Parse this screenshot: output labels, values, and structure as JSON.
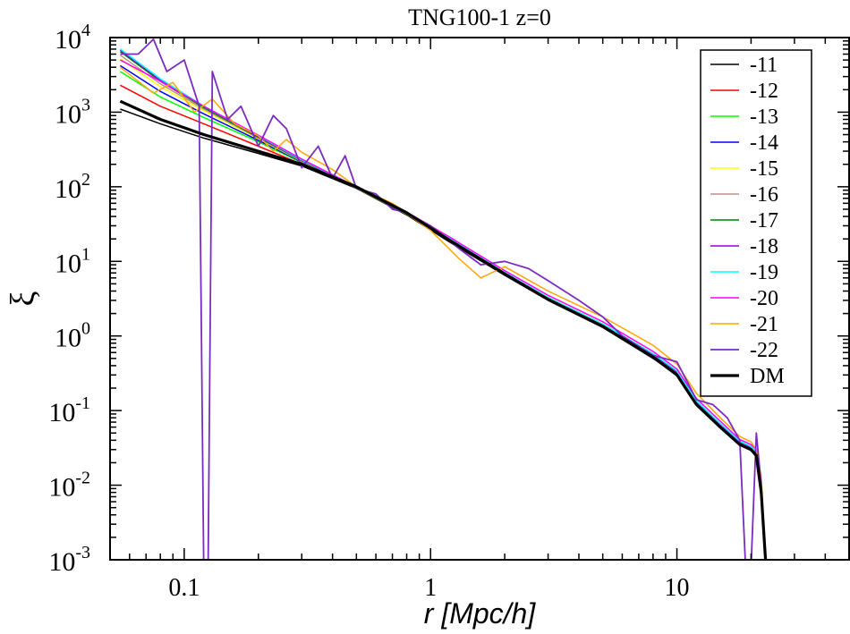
{
  "chart_data": {
    "type": "line",
    "title": "TNG100-1 z=0",
    "xlabel": "r [Mpc/h]",
    "ylabel": "ξ",
    "xscale": "log",
    "yscale": "log",
    "xlim": [
      0.05,
      50
    ],
    "ylim": [
      0.001,
      10000
    ],
    "x_ticks": [
      {
        "value": 0.1,
        "label": "0.1"
      },
      {
        "value": 1,
        "label": "1"
      },
      {
        "value": 10,
        "label": "10"
      }
    ],
    "y_ticks": [
      {
        "value": 0.001,
        "base": "10",
        "exp": "-3"
      },
      {
        "value": 0.01,
        "base": "10",
        "exp": "-2"
      },
      {
        "value": 0.1,
        "base": "10",
        "exp": "-1"
      },
      {
        "value": 1,
        "base": "10",
        "exp": "0"
      },
      {
        "value": 10,
        "base": "10",
        "exp": "1"
      },
      {
        "value": 100,
        "base": "10",
        "exp": "2"
      },
      {
        "value": 1000,
        "base": "10",
        "exp": "3"
      },
      {
        "value": 10000,
        "base": "10",
        "exp": "4"
      }
    ],
    "grid": false,
    "legend_position": "top-right",
    "series": [
      {
        "name": "-11",
        "color": "#000000",
        "width": 1.5,
        "x": [
          0.055,
          0.08,
          0.12,
          0.2,
          0.3,
          0.5,
          0.8,
          1.2,
          2,
          3,
          5,
          8,
          10,
          12,
          15,
          18,
          20,
          21,
          22,
          23
        ],
        "y": [
          1100,
          700,
          450,
          280,
          190,
          95,
          42,
          18,
          6.5,
          3,
          1.3,
          0.5,
          0.3,
          0.12,
          0.06,
          0.035,
          0.03,
          0.025,
          0.008,
          0.0008
        ]
      },
      {
        "name": "-12",
        "color": "#ff0000",
        "width": 1.5,
        "x": [
          0.055,
          0.08,
          0.12,
          0.2,
          0.3,
          0.5,
          0.8,
          1.2,
          2,
          3,
          5,
          8,
          10,
          12,
          15,
          18,
          20,
          21,
          22,
          23
        ],
        "y": [
          2300,
          1200,
          700,
          350,
          200,
          100,
          45,
          20,
          7,
          3.2,
          1.4,
          0.55,
          0.32,
          0.13,
          0.065,
          0.037,
          0.031,
          0.026,
          0.009,
          0.0008
        ]
      },
      {
        "name": "-13",
        "color": "#00ff00",
        "width": 1.5,
        "x": [
          0.055,
          0.08,
          0.12,
          0.2,
          0.3,
          0.5,
          0.8,
          1.2,
          2,
          3,
          5,
          8,
          10,
          12,
          15,
          18,
          20,
          21,
          22,
          23
        ],
        "y": [
          3500,
          1600,
          850,
          400,
          210,
          98,
          44,
          19.5,
          6.8,
          3.1,
          1.35,
          0.52,
          0.31,
          0.125,
          0.062,
          0.036,
          0.03,
          0.025,
          0.009,
          0.0008
        ]
      },
      {
        "name": "-14",
        "color": "#0000ff",
        "width": 1.5,
        "x": [
          0.055,
          0.08,
          0.12,
          0.2,
          0.3,
          0.5,
          0.8,
          1.2,
          2,
          3,
          5,
          8,
          10,
          12,
          15,
          18,
          20,
          21,
          22,
          23
        ],
        "y": [
          4200,
          1900,
          950,
          420,
          215,
          97,
          43,
          19,
          6.6,
          3.05,
          1.32,
          0.51,
          0.3,
          0.122,
          0.06,
          0.035,
          0.029,
          0.024,
          0.008,
          0.0008
        ]
      },
      {
        "name": "-15",
        "color": "#ffff00",
        "width": 1.5,
        "x": [
          0.055,
          0.08,
          0.12,
          0.2,
          0.3,
          0.5,
          0.8,
          1.2,
          2,
          3,
          5,
          8,
          10,
          12,
          15,
          18,
          20,
          21,
          22,
          23
        ],
        "y": [
          5200,
          2200,
          1050,
          440,
          220,
          96,
          43,
          19,
          6.7,
          3.1,
          1.35,
          0.53,
          0.31,
          0.125,
          0.062,
          0.036,
          0.03,
          0.025,
          0.009,
          0.0008
        ]
      },
      {
        "name": "-16",
        "color": "#bc8f8f",
        "width": 1.5,
        "x": [
          0.055,
          0.08,
          0.12,
          0.2,
          0.3,
          0.5,
          0.8,
          1.2,
          2,
          3,
          5,
          8,
          10,
          12,
          15,
          18,
          20,
          21,
          22,
          23
        ],
        "y": [
          5800,
          2400,
          1100,
          450,
          222,
          96,
          43,
          19,
          6.7,
          3.1,
          1.35,
          0.53,
          0.31,
          0.125,
          0.062,
          0.036,
          0.03,
          0.025,
          0.009,
          0.0008
        ]
      },
      {
        "name": "-17",
        "color": "#008000",
        "width": 1.5,
        "x": [
          0.055,
          0.08,
          0.12,
          0.2,
          0.3,
          0.5,
          0.8,
          1.2,
          2,
          3,
          5,
          8,
          10,
          12,
          15,
          18,
          20,
          21,
          22,
          23
        ],
        "y": [
          6500,
          2600,
          1150,
          460,
          225,
          97,
          43,
          19,
          6.7,
          3.1,
          1.36,
          0.54,
          0.32,
          0.127,
          0.063,
          0.036,
          0.031,
          0.026,
          0.009,
          0.0008
        ]
      },
      {
        "name": "-18",
        "color": "#9400d3",
        "width": 1.5,
        "x": [
          0.055,
          0.08,
          0.12,
          0.2,
          0.3,
          0.5,
          0.8,
          1.2,
          2,
          3,
          5,
          8,
          10,
          12,
          15,
          18,
          20,
          21,
          22,
          23
        ],
        "y": [
          6800,
          2700,
          1200,
          470,
          228,
          98,
          44,
          19.5,
          6.9,
          3.2,
          1.4,
          0.56,
          0.33,
          0.13,
          0.065,
          0.038,
          0.032,
          0.027,
          0.009,
          0.0008
        ]
      },
      {
        "name": "-19",
        "color": "#00ffff",
        "width": 1.5,
        "x": [
          0.055,
          0.08,
          0.12,
          0.2,
          0.3,
          0.5,
          0.8,
          1.2,
          2,
          3,
          5,
          8,
          10,
          12,
          15,
          18,
          20,
          21,
          22,
          23
        ],
        "y": [
          7000,
          2800,
          1200,
          480,
          230,
          99,
          45,
          20,
          7.1,
          3.3,
          1.45,
          0.58,
          0.34,
          0.135,
          0.067,
          0.039,
          0.033,
          0.028,
          0.01,
          0.0008
        ]
      },
      {
        "name": "-20",
        "color": "#ff00ff",
        "width": 1.5,
        "x": [
          0.055,
          0.08,
          0.12,
          0.2,
          0.3,
          0.5,
          0.8,
          1.2,
          2,
          3,
          5,
          8,
          10,
          12,
          15,
          18,
          20,
          21,
          22,
          23
        ],
        "y": [
          5000,
          2600,
          1200,
          490,
          235,
          100,
          46,
          21,
          7.5,
          3.5,
          1.55,
          0.62,
          0.36,
          0.145,
          0.072,
          0.041,
          0.035,
          0.03,
          0.011,
          0.0008
        ]
      },
      {
        "name": "-21",
        "color": "#ffa500",
        "width": 1.5,
        "x": [
          0.055,
          0.065,
          0.075,
          0.09,
          0.11,
          0.13,
          0.16,
          0.2,
          0.23,
          0.26,
          0.3,
          0.4,
          0.5,
          0.7,
          1,
          1.3,
          1.6,
          2,
          3,
          5,
          8,
          10,
          12,
          15,
          18,
          20,
          21,
          22,
          23
        ],
        "y": [
          4000,
          2600,
          1800,
          2500,
          1000,
          1500,
          700,
          480,
          300,
          430,
          290,
          170,
          100,
          60,
          26,
          11,
          6,
          8.5,
          4,
          1.8,
          0.75,
          0.42,
          0.17,
          0.08,
          0.045,
          0.038,
          0.03,
          0.013,
          0.0008
        ]
      },
      {
        "name": "-22",
        "color": "#7b2cbf",
        "width": 1.8,
        "x": [
          0.055,
          0.065,
          0.075,
          0.085,
          0.1,
          0.115,
          0.12,
          0.125,
          0.13,
          0.15,
          0.17,
          0.2,
          0.23,
          0.26,
          0.3,
          0.35,
          0.4,
          0.45,
          0.5,
          0.6,
          0.7,
          0.8,
          1,
          1.3,
          1.6,
          2,
          2.5,
          3,
          4,
          5,
          6,
          8,
          10,
          12,
          14,
          16,
          18,
          19,
          20,
          21,
          22,
          23
        ],
        "y": [
          6000,
          6000,
          9500,
          3500,
          5000,
          1200,
          0.0008,
          0.0008,
          3500,
          800,
          1200,
          350,
          900,
          600,
          180,
          350,
          130,
          260,
          95,
          80,
          50,
          45,
          30,
          15,
          9,
          10,
          8,
          5.5,
          3,
          1.8,
          1,
          0.55,
          0.45,
          0.14,
          0.12,
          0.08,
          0.04,
          0.0008,
          0.0008,
          0.05,
          0.01,
          0.0008
        ]
      },
      {
        "name": "DM",
        "color": "#000000",
        "width": 3.2,
        "x": [
          0.055,
          0.08,
          0.12,
          0.2,
          0.3,
          0.5,
          0.8,
          1.2,
          2,
          3,
          5,
          8,
          10,
          12,
          15,
          18,
          20,
          21,
          22,
          23
        ],
        "y": [
          1400,
          800,
          500,
          300,
          200,
          100,
          45,
          19,
          6.8,
          3.1,
          1.35,
          0.52,
          0.3,
          0.12,
          0.06,
          0.035,
          0.03,
          0.025,
          0.008,
          0.0008
        ]
      }
    ]
  }
}
